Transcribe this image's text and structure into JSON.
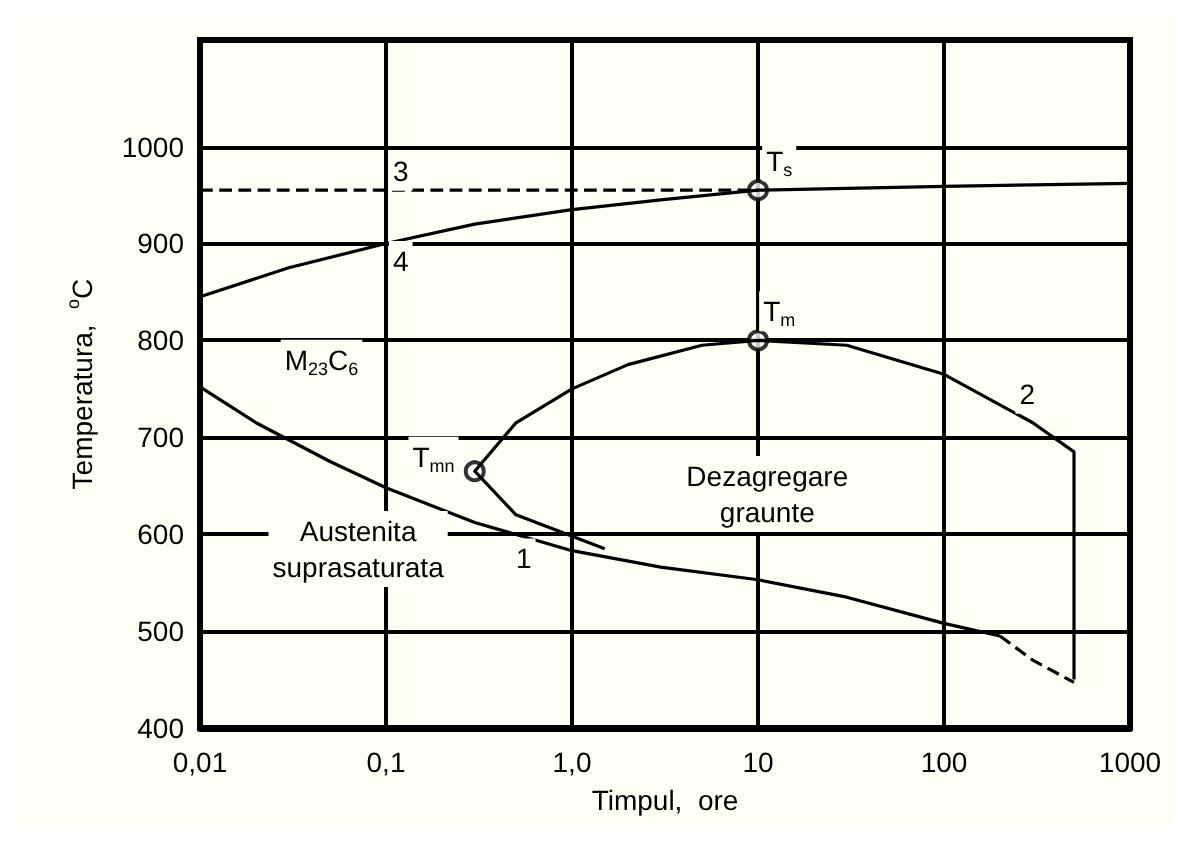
{
  "chart_data": {
    "type": "line",
    "xlabel": "Timpul,  ore",
    "ylabel": "Temperatura,  $^{o}$C",
    "log": "x",
    "grid": true,
    "xlim": [
      0.01,
      1000
    ],
    "ylim": [
      400,
      1110
    ],
    "xticks": [
      {
        "value": 0.01,
        "label": "0,01"
      },
      {
        "value": 0.1,
        "label": "0,1"
      },
      {
        "value": 1,
        "label": "1,0"
      },
      {
        "value": 10,
        "label": "10"
      },
      {
        "value": 100,
        "label": "100"
      },
      {
        "value": 1000,
        "label": "1000"
      }
    ],
    "yticks": [
      400,
      500,
      600,
      700,
      800,
      900,
      1000
    ],
    "series": [
      {
        "color": "#000000",
        "line_style": "dashed",
        "x": [
          0.01,
          10
        ],
        "values": [
          955,
          955
        ]
      },
      {
        "color": "#000000",
        "line_style": "solid",
        "x": [
          0.01,
          0.03,
          0.1,
          0.3,
          1,
          3,
          10,
          100,
          1000
        ],
        "values": [
          845,
          875,
          900,
          920,
          935,
          945,
          955,
          959,
          962
        ]
      },
      {
        "color": "#000000",
        "line_style": "solid",
        "x": [
          0.01,
          0.02,
          0.05,
          0.1,
          0.3,
          1,
          3,
          10,
          30,
          100,
          200
        ],
        "values": [
          752,
          715,
          675,
          648,
          612,
          583,
          566,
          553,
          535,
          508,
          495
        ]
      },
      {
        "color": "#000000",
        "line_style": "dashed",
        "x": [
          200,
          300,
          500
        ],
        "values": [
          495,
          470,
          447
        ]
      },
      {
        "color": "#000000",
        "line_style": "solid",
        "x": [
          1.5,
          0.5,
          0.3,
          0.5,
          1,
          2,
          5,
          10,
          30,
          100,
          300,
          500,
          500
        ],
        "values": [
          585,
          620,
          665,
          715,
          750,
          775,
          795,
          800,
          795,
          765,
          715,
          685,
          450
        ]
      },
      {
        "type": "scatter",
        "marker": "circle",
        "color": "#000000",
        "x": [
          10,
          10,
          0.3
        ],
        "values": [
          955,
          800,
          665
        ]
      }
    ],
    "annotations": [
      {
        "text": "3",
        "x": 0.12,
        "y": 975
      },
      {
        "text": "4",
        "x": 0.12,
        "y": 882
      },
      {
        "text": "1",
        "x": 0.55,
        "y": 575
      },
      {
        "text": "2",
        "x": 280,
        "y": 745
      },
      {
        "text": "T$_{s}$",
        "x": 13,
        "y": 985
      },
      {
        "text": "T$_{m}$",
        "x": 13,
        "y": 830
      },
      {
        "text": "T$_{mn}$",
        "x": 0.18,
        "y": 680
      },
      {
        "text": "M$_{23}$C$_{6}$",
        "x": 0.045,
        "y": 780
      },
      "Austenita\nsuprasaturata",
      "Dezagregare\ngraunte"
    ]
  }
}
